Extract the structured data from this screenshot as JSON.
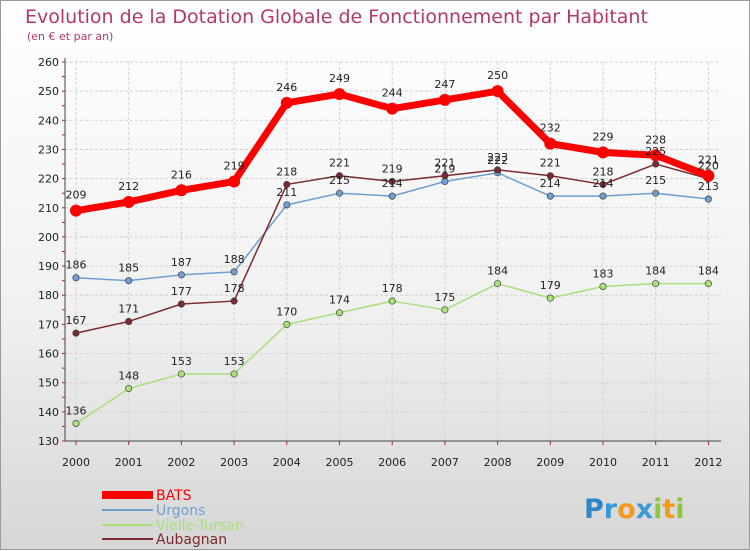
{
  "chart_data": {
    "type": "line",
    "title": "Evolution de la Dotation Globale de Fonctionnement par Habitant",
    "subtitle": "(en € et par an)",
    "xlabel": "",
    "ylabel": "",
    "x": [
      "2000",
      "2001",
      "2002",
      "2003",
      "2004",
      "2005",
      "2006",
      "2007",
      "2008",
      "2009",
      "2010",
      "2011",
      "2012"
    ],
    "ylim": [
      130,
      260
    ],
    "yticks": [
      130,
      140,
      150,
      160,
      170,
      180,
      190,
      200,
      210,
      220,
      230,
      240,
      250,
      260
    ],
    "grid": true,
    "legend_position": "bottom-left",
    "series": [
      {
        "name": "BATS",
        "color": "#ff0000",
        "values": [
          209,
          212,
          216,
          219,
          246,
          249,
          244,
          247,
          250,
          232,
          229,
          228,
          221
        ]
      },
      {
        "name": "Urgons",
        "color": "#6f9fd0",
        "values": [
          186,
          185,
          187,
          188,
          211,
          215,
          214,
          219,
          222,
          214,
          214,
          215,
          213
        ]
      },
      {
        "name": "Vielle-Tursan",
        "color": "#a8e07a",
        "values": [
          136,
          148,
          153,
          153,
          170,
          174,
          178,
          175,
          184,
          179,
          183,
          184,
          184
        ]
      },
      {
        "name": "Aubagnan",
        "color": "#7a2a30",
        "values": [
          167,
          171,
          177,
          178,
          218,
          221,
          219,
          221,
          223,
          221,
          218,
          225,
          220
        ]
      }
    ]
  },
  "logo": {
    "text": "Proxiti"
  }
}
